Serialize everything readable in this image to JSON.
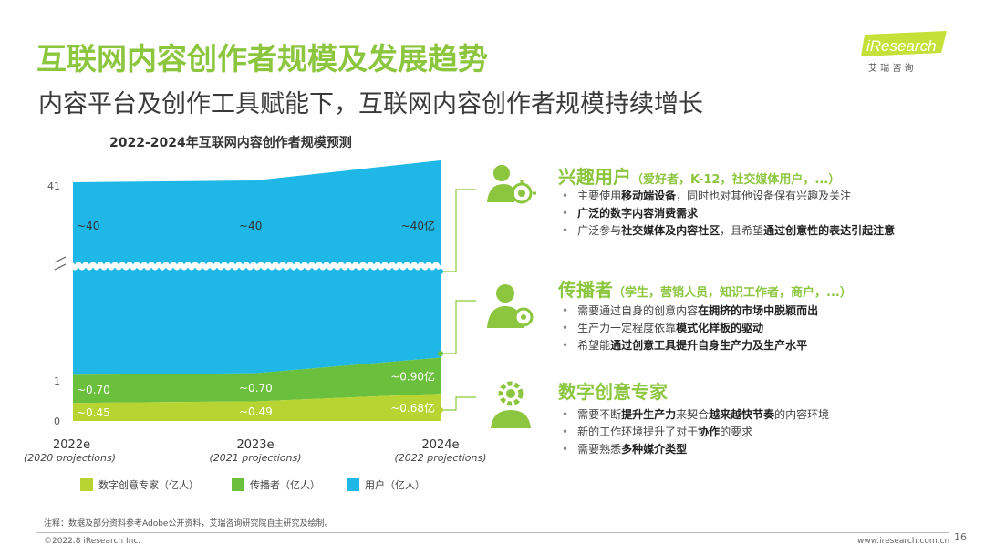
{
  "header": {
    "title": "互联网内容创作者规模及发展趋势",
    "subtitle": "内容平台及创作工具赋能下，互联网内容创作者规模持续增长"
  },
  "logo": {
    "brand": "iResearch",
    "brand_cn": "艾 瑞 咨 询"
  },
  "chart_data": {
    "type": "area",
    "title": "2022-2024年互联网内容创作者规模预测",
    "categories": [
      "2022e",
      "2023e",
      "2024e"
    ],
    "category_notes": [
      "(2020 projections)",
      "(2021 projections)",
      "(2022 projections)"
    ],
    "y_ticks": [
      "0",
      "1",
      "41"
    ],
    "axis_break": true,
    "series": [
      {
        "name": "数字创意专家（亿人）",
        "color": "#b7d433",
        "values": [
          0.45,
          0.49,
          0.68
        ],
        "labels": [
          "~0.45",
          "~0.49",
          "~0.68亿"
        ]
      },
      {
        "name": "传播者（亿人）",
        "color": "#6abf3c",
        "values": [
          0.7,
          0.7,
          0.9
        ],
        "labels": [
          "~0.70",
          "~0.70",
          "~0.90亿"
        ]
      },
      {
        "name": "用户（亿人）",
        "color": "#1fb8e6",
        "values": [
          40,
          40,
          40
        ],
        "labels": [
          "~40",
          "~40",
          "~40亿"
        ]
      }
    ],
    "legend": "bottom"
  },
  "sections": [
    {
      "icon": "user-network-icon",
      "title": "兴趣用户",
      "subtitle": "（爱好者，K-12，社交媒体用户，...）",
      "bullets": [
        [
          {
            "t": "主要使用"
          },
          {
            "t": "移动端设备",
            "b": true
          },
          {
            "t": "，同时也对其他设备保有兴趣及关注"
          }
        ],
        [
          {
            "t": "广泛的数字内容消费需求",
            "b": true
          }
        ],
        [
          {
            "t": "广泛参与"
          },
          {
            "t": "社交媒体及内容社区",
            "b": true
          },
          {
            "t": "，且希望"
          },
          {
            "t": "通过创意性的表达引起注意",
            "b": true
          }
        ]
      ]
    },
    {
      "icon": "presenter-icon",
      "title": "传播者",
      "subtitle": "（学生，营销人员，知识工作者，商户，...）",
      "bullets": [
        [
          {
            "t": "需要通过自身的创意内容"
          },
          {
            "t": "在拥挤的市场中脱颖而出",
            "b": true
          }
        ],
        [
          {
            "t": "生产力一定程度依靠"
          },
          {
            "t": "模式化样板的驱动",
            "b": true
          }
        ],
        [
          {
            "t": "希望能"
          },
          {
            "t": "通过创意工具提升自身生产力及生产水平",
            "b": true
          }
        ]
      ]
    },
    {
      "icon": "gear-person-icon",
      "title": "数字创意专家",
      "subtitle": "",
      "bullets": [
        [
          {
            "t": "需要不断"
          },
          {
            "t": "提升生产力",
            "b": true
          },
          {
            "t": "来契合"
          },
          {
            "t": "越来越快节奏",
            "b": true
          },
          {
            "t": "的内容环境"
          }
        ],
        [
          {
            "t": "新的工作环境提升了对于"
          },
          {
            "t": "协作",
            "b": true
          },
          {
            "t": "的要求"
          }
        ],
        [
          {
            "t": "需要熟悉"
          },
          {
            "t": "多种媒介类型",
            "b": true
          }
        ]
      ]
    }
  ],
  "footer": {
    "note": "注释：数据及部分资料参考Adobe公开资料，艾瑞咨询研究院自主研究及绘制。",
    "copyright": "©2022.8 iResearch Inc.",
    "website": "www.iresearch.com.cn",
    "page": "16"
  }
}
